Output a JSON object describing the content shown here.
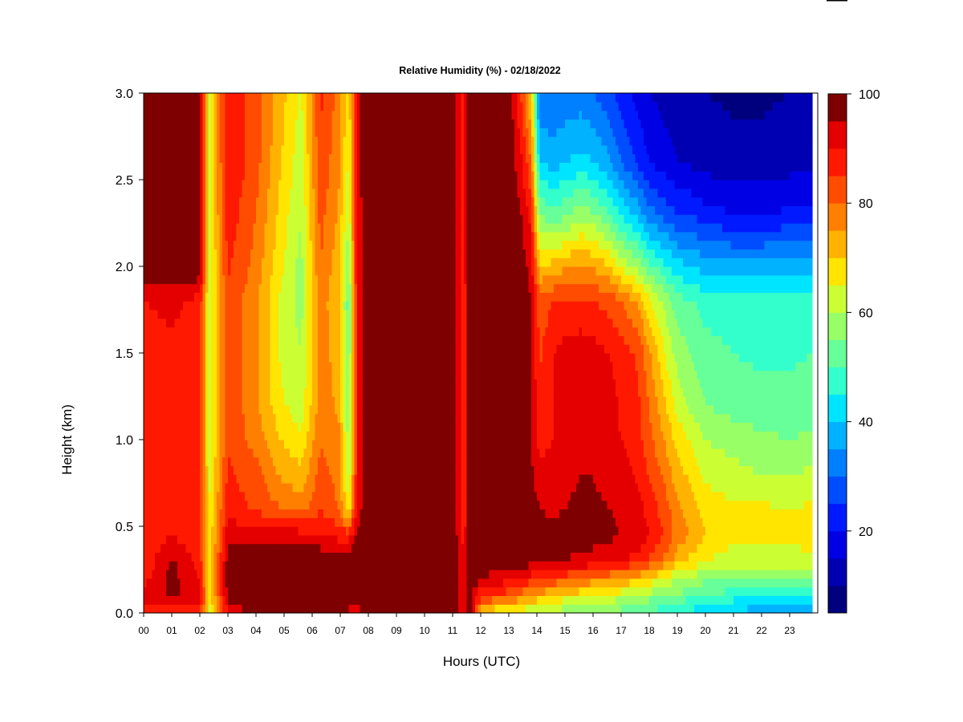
{
  "chart_data": {
    "type": "heatmap",
    "title": "Relative Humidity (%) - 02/18/2022",
    "xlabel": "Hours (UTC)",
    "ylabel": "Height (km)",
    "x_ticks": [
      "00",
      "01",
      "02",
      "03",
      "04",
      "05",
      "06",
      "07",
      "08",
      "09",
      "10",
      "11",
      "12",
      "13",
      "14",
      "15",
      "16",
      "17",
      "18",
      "19",
      "20",
      "21",
      "22",
      "23"
    ],
    "y_ticks": [
      "0.0",
      "0.5",
      "1.0",
      "1.5",
      "2.0",
      "2.5",
      "3.0"
    ],
    "xlim": [
      0,
      24
    ],
    "ylim": [
      0,
      3.0
    ],
    "colorbar": {
      "range": [
        5,
        100
      ],
      "step": 5,
      "tick_labels": [
        "20",
        "40",
        "60",
        "80",
        "100"
      ],
      "tick_values": [
        20,
        40,
        60,
        80,
        100
      ],
      "colors": [
        "#00007f",
        "#0000b2",
        "#0000e5",
        "#0019ff",
        "#004cff",
        "#007fff",
        "#00b2ff",
        "#00e5ff",
        "#33ffcc",
        "#66ff99",
        "#99ff66",
        "#ccff33",
        "#ffe500",
        "#ffb200",
        "#ff7f00",
        "#ff4c00",
        "#ff1900",
        "#e50000",
        "#7f0000"
      ]
    },
    "heights_km": [
      0.0,
      0.05,
      0.1,
      0.2,
      0.3,
      0.45,
      0.6,
      0.8,
      1.0,
      1.2,
      1.5,
      1.8,
      2.0,
      2.3,
      2.6,
      3.0
    ],
    "hours": [
      0,
      1,
      2,
      2.35,
      3,
      4,
      4.9,
      5.6,
      6.3,
      6.95,
      7.3,
      7.6,
      8,
      9,
      10,
      11,
      11.4,
      11.6,
      12,
      12.5,
      13,
      13.4,
      13.8,
      14.1,
      14.6,
      15,
      15.6,
      16,
      16.6,
      17,
      17.6,
      18,
      18.6,
      19,
      19.6,
      20,
      21,
      22,
      23,
      23.8
    ],
    "rh_percent": [
      [
        85,
        88,
        86,
        62,
        88,
        99,
        99,
        99,
        99,
        99,
        92,
        90,
        99,
        99,
        99,
        99,
        88,
        99,
        70,
        66,
        64,
        62,
        61,
        62,
        60,
        58,
        57,
        56,
        55,
        54,
        52,
        50,
        48,
        46,
        44,
        42,
        40,
        38,
        36,
        38
      ],
      [
        90,
        92,
        90,
        65,
        95,
        99,
        99,
        99,
        99,
        99,
        97,
        97,
        99,
        99,
        99,
        99,
        90,
        99,
        80,
        74,
        72,
        70,
        67,
        66,
        63,
        61,
        60,
        59,
        58,
        56,
        54,
        52,
        50,
        48,
        46,
        44,
        42,
        40,
        40,
        41
      ],
      [
        92,
        96,
        92,
        66,
        97,
        99,
        99,
        99,
        99,
        99,
        99,
        99,
        99,
        99,
        99,
        99,
        90,
        99,
        86,
        84,
        82,
        78,
        74,
        73,
        70,
        68,
        66,
        65,
        64,
        62,
        60,
        58,
        56,
        54,
        52,
        50,
        48,
        47,
        47,
        48
      ],
      [
        88,
        97,
        90,
        66,
        98,
        99,
        99,
        99,
        99,
        99,
        99,
        99,
        99,
        99,
        99,
        99,
        90,
        99,
        95,
        93,
        92,
        90,
        88,
        86,
        84,
        82,
        80,
        78,
        76,
        74,
        72,
        68,
        64,
        60,
        58,
        56,
        54,
        54,
        55,
        56
      ],
      [
        86,
        96,
        88,
        66,
        98,
        99,
        99,
        99,
        99,
        99,
        99,
        99,
        99,
        99,
        99,
        99,
        90,
        99,
        99,
        99,
        99,
        98,
        97,
        96,
        95,
        95,
        94,
        93,
        92,
        90,
        88,
        84,
        78,
        72,
        68,
        65,
        62,
        62,
        63,
        64
      ],
      [
        86,
        90,
        86,
        66,
        93,
        94,
        94,
        92,
        91,
        88,
        88,
        96,
        99,
        99,
        99,
        99,
        88,
        99,
        99,
        99,
        99,
        99,
        98,
        97,
        97,
        97,
        97,
        97,
        96,
        95,
        94,
        90,
        84,
        78,
        74,
        70,
        67,
        66,
        66,
        67
      ],
      [
        88,
        88,
        86,
        66,
        88,
        84,
        80,
        78,
        85,
        80,
        65,
        92,
        99,
        99,
        99,
        99,
        86,
        99,
        99,
        99,
        99,
        99,
        97,
        95,
        94,
        95,
        96,
        96,
        95,
        94,
        92,
        88,
        82,
        76,
        72,
        68,
        66,
        66,
        65,
        66
      ],
      [
        86,
        88,
        86,
        64,
        86,
        82,
        74,
        72,
        82,
        78,
        60,
        90,
        99,
        99,
        99,
        99,
        86,
        99,
        99,
        99,
        99,
        99,
        96,
        92,
        92,
        94,
        95,
        95,
        93,
        92,
        89,
        84,
        78,
        72,
        68,
        64,
        62,
        60,
        60,
        61
      ],
      [
        86,
        90,
        86,
        62,
        84,
        78,
        70,
        66,
        80,
        76,
        58,
        90,
        99,
        99,
        99,
        99,
        86,
        99,
        99,
        99,
        99,
        99,
        95,
        88,
        90,
        94,
        95,
        94,
        92,
        90,
        87,
        82,
        74,
        68,
        64,
        60,
        58,
        56,
        55,
        56
      ],
      [
        86,
        90,
        86,
        62,
        84,
        76,
        66,
        62,
        78,
        74,
        56,
        90,
        99,
        99,
        99,
        99,
        86,
        99,
        99,
        99,
        99,
        99,
        95,
        86,
        90,
        94,
        95,
        94,
        92,
        89,
        86,
        80,
        70,
        63,
        58,
        55,
        53,
        52,
        52,
        53
      ],
      [
        86,
        88,
        86,
        62,
        84,
        76,
        64,
        60,
        78,
        72,
        54,
        90,
        99,
        99,
        99,
        99,
        86,
        99,
        99,
        99,
        99,
        99,
        95,
        84,
        90,
        92,
        93,
        92,
        90,
        88,
        84,
        76,
        64,
        58,
        54,
        52,
        50,
        49,
        49,
        50
      ],
      [
        90,
        92,
        88,
        62,
        84,
        76,
        64,
        58,
        78,
        70,
        52,
        90,
        99,
        99,
        99,
        99,
        86,
        99,
        99,
        99,
        99,
        99,
        95,
        82,
        85,
        86,
        86,
        85,
        83,
        80,
        74,
        66,
        58,
        52,
        50,
        48,
        47,
        47,
        47,
        48
      ],
      [
        99,
        99,
        99,
        62,
        86,
        78,
        66,
        58,
        80,
        72,
        56,
        92,
        99,
        99,
        99,
        99,
        88,
        99,
        99,
        99,
        99,
        98,
        93,
        70,
        72,
        74,
        76,
        74,
        70,
        64,
        58,
        52,
        46,
        42,
        40,
        38,
        37,
        37,
        38,
        38
      ],
      [
        99,
        99,
        99,
        64,
        88,
        80,
        68,
        60,
        82,
        74,
        60,
        92,
        99,
        99,
        99,
        99,
        88,
        99,
        99,
        99,
        99,
        96,
        88,
        55,
        52,
        54,
        58,
        56,
        50,
        44,
        38,
        32,
        28,
        25,
        24,
        22,
        20,
        20,
        21,
        22
      ],
      [
        99,
        99,
        99,
        64,
        90,
        82,
        70,
        62,
        84,
        76,
        64,
        94,
        99,
        99,
        99,
        99,
        88,
        99,
        99,
        99,
        99,
        92,
        80,
        40,
        38,
        40,
        42,
        40,
        36,
        30,
        24,
        20,
        17,
        15,
        14,
        13,
        12,
        12,
        13,
        14
      ],
      [
        99,
        99,
        99,
        64,
        90,
        82,
        72,
        64,
        86,
        78,
        66,
        94,
        99,
        99,
        99,
        99,
        88,
        99,
        99,
        99,
        99,
        86,
        70,
        30,
        30,
        31,
        32,
        30,
        26,
        22,
        18,
        15,
        13,
        12,
        11,
        10,
        9,
        9,
        10,
        11
      ]
    ]
  }
}
